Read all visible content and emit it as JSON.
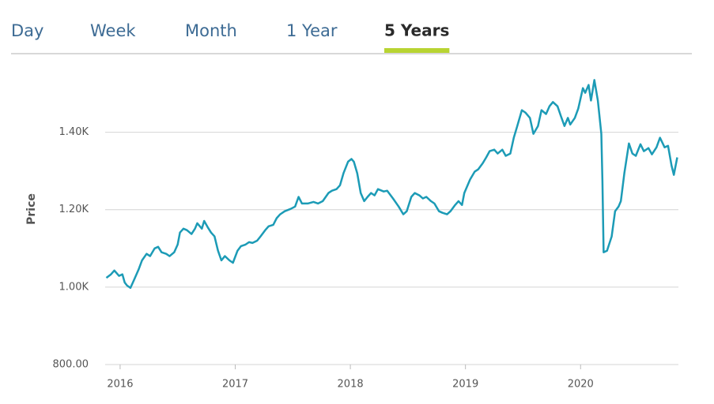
{
  "tabs": {
    "items": [
      "Day",
      "Week",
      "Month",
      "1 Year",
      "5 Years"
    ],
    "selected": 4
  },
  "chart_data": {
    "type": "line",
    "y_label": "Price",
    "color": "#1c9bb6",
    "grid": true,
    "xlim": [
      2015.87,
      2020.85
    ],
    "xticks": [
      2016,
      2017,
      2018,
      2019,
      2020
    ],
    "ylim": [
      800,
      1550
    ],
    "yticks": [
      {
        "value": 800,
        "label": "800.00"
      },
      {
        "value": 1000,
        "label": "1.00K"
      },
      {
        "value": 1200,
        "label": "1.20K"
      },
      {
        "value": 1400,
        "label": "1.40K"
      }
    ],
    "x": [
      2015.88,
      2015.92,
      2015.95,
      2015.99,
      2016.02,
      2016.04,
      2016.06,
      2016.09,
      2016.12,
      2016.16,
      2016.19,
      2016.23,
      2016.26,
      2016.3,
      2016.33,
      2016.36,
      2016.4,
      2016.43,
      2016.47,
      2016.5,
      2016.52,
      2016.55,
      2016.58,
      2016.62,
      2016.65,
      2016.67,
      2016.71,
      2016.73,
      2016.76,
      2016.79,
      2016.82,
      2016.85,
      2016.88,
      2016.91,
      2016.95,
      2016.98,
      2017.02,
      2017.05,
      2017.09,
      2017.12,
      2017.15,
      2017.19,
      2017.22,
      2017.26,
      2017.29,
      2017.33,
      2017.36,
      2017.39,
      2017.43,
      2017.48,
      2017.52,
      2017.55,
      2017.58,
      2017.63,
      2017.68,
      2017.72,
      2017.76,
      2017.81,
      2017.84,
      2017.88,
      2017.91,
      2017.94,
      2017.98,
      2018.01,
      2018.03,
      2018.06,
      2018.09,
      2018.12,
      2018.15,
      2018.18,
      2018.21,
      2018.24,
      2018.29,
      2018.32,
      2018.37,
      2018.42,
      2018.46,
      2018.49,
      2018.53,
      2018.56,
      2018.6,
      2018.63,
      2018.66,
      2018.7,
      2018.73,
      2018.77,
      2018.8,
      2018.84,
      2018.87,
      2018.91,
      2018.94,
      2018.97,
      2018.99,
      2019.04,
      2019.08,
      2019.11,
      2019.15,
      2019.18,
      2019.21,
      2019.25,
      2019.28,
      2019.32,
      2019.35,
      2019.39,
      2019.42,
      2019.45,
      2019.49,
      2019.52,
      2019.56,
      2019.59,
      2019.63,
      2019.66,
      2019.7,
      2019.73,
      2019.76,
      2019.8,
      2019.83,
      2019.86,
      2019.89,
      2019.91,
      2019.95,
      2019.98,
      2020.02,
      2020.04,
      2020.07,
      2020.09,
      2020.12,
      2020.15,
      2020.18,
      2020.19,
      2020.2,
      2020.23,
      2020.27,
      2020.3,
      2020.33,
      2020.35,
      2020.38,
      2020.42,
      2020.45,
      2020.48,
      2020.52,
      2020.55,
      2020.59,
      2020.62,
      2020.66,
      2020.69,
      2020.73,
      2020.76,
      2020.79,
      2020.81,
      2020.84
    ],
    "values": [
      1024,
      1033,
      1043,
      1029,
      1033,
      1012,
      1004,
      998,
      1018,
      1045,
      1069,
      1086,
      1080,
      1100,
      1104,
      1090,
      1086,
      1080,
      1090,
      1110,
      1141,
      1151,
      1147,
      1137,
      1151,
      1165,
      1151,
      1171,
      1155,
      1141,
      1131,
      1094,
      1069,
      1080,
      1069,
      1063,
      1094,
      1106,
      1110,
      1116,
      1114,
      1120,
      1131,
      1147,
      1157,
      1161,
      1178,
      1188,
      1196,
      1202,
      1208,
      1233,
      1216,
      1216,
      1220,
      1216,
      1222,
      1243,
      1249,
      1253,
      1263,
      1294,
      1324,
      1331,
      1324,
      1294,
      1243,
      1222,
      1233,
      1243,
      1237,
      1253,
      1247,
      1249,
      1229,
      1208,
      1188,
      1196,
      1233,
      1243,
      1237,
      1229,
      1233,
      1222,
      1216,
      1196,
      1192,
      1188,
      1196,
      1212,
      1222,
      1212,
      1243,
      1278,
      1298,
      1304,
      1320,
      1335,
      1351,
      1355,
      1345,
      1355,
      1339,
      1345,
      1386,
      1416,
      1457,
      1451,
      1437,
      1396,
      1416,
      1457,
      1447,
      1467,
      1478,
      1467,
      1441,
      1416,
      1437,
      1420,
      1437,
      1461,
      1514,
      1502,
      1522,
      1482,
      1535,
      1482,
      1396,
      1273,
      1090,
      1094,
      1131,
      1196,
      1208,
      1222,
      1294,
      1371,
      1345,
      1339,
      1369,
      1351,
      1359,
      1343,
      1361,
      1386,
      1361,
      1365,
      1314,
      1290,
      1335
    ]
  }
}
